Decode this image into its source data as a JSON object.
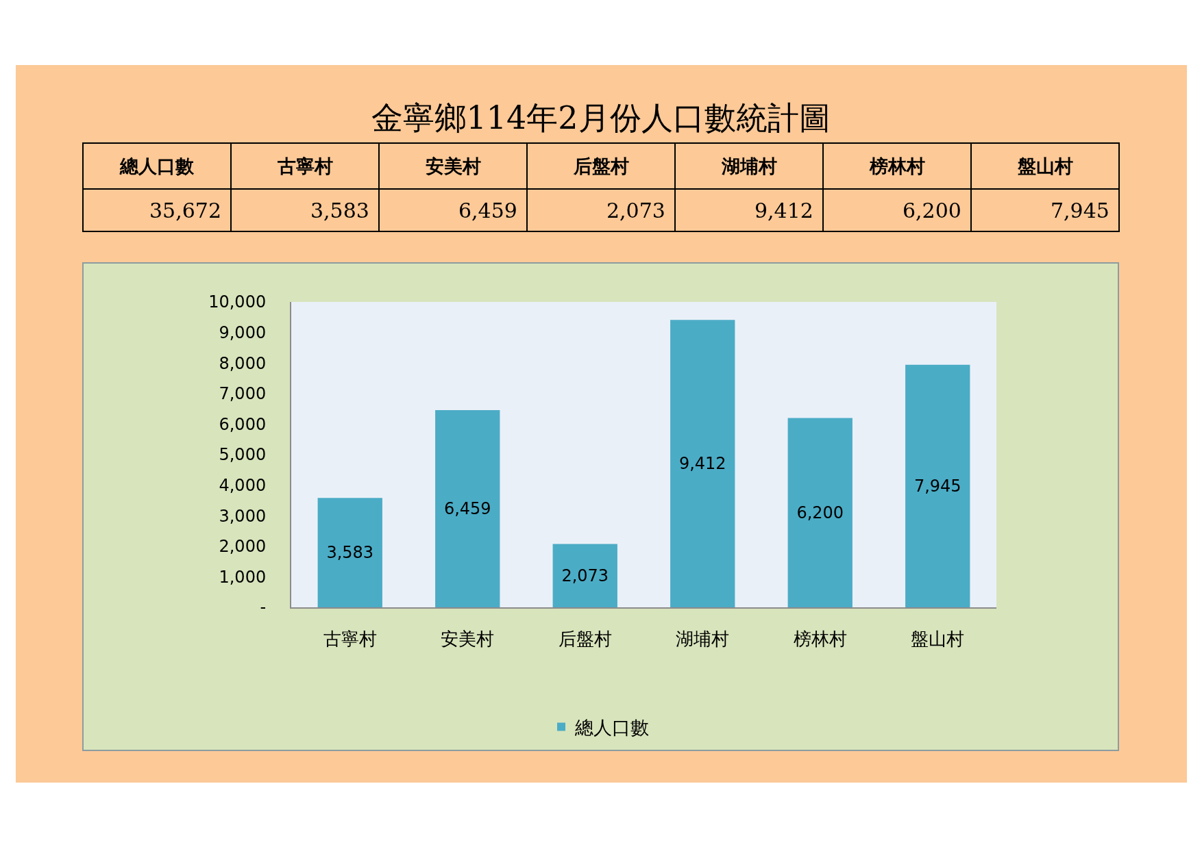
{
  "chart_data": {
    "type": "bar",
    "title": "金寧鄉114年2月份人口數統計圖",
    "categories": [
      "古寧村",
      "安美村",
      "后盤村",
      "湖埔村",
      "榜林村",
      "盤山村"
    ],
    "series": [
      {
        "name": "總人口數",
        "color": "#4bacc6",
        "values": [
          3583,
          6459,
          2073,
          9412,
          6200,
          7945
        ],
        "value_labels": [
          "3,583",
          "6,459",
          "2,073",
          "9,412",
          "6,200",
          "7,945"
        ]
      }
    ],
    "ylim": [
      0,
      10000
    ],
    "yticks": [
      {
        "value": 0,
        "label": "-"
      },
      {
        "value": 1000,
        "label": "1,000"
      },
      {
        "value": 2000,
        "label": "2,000"
      },
      {
        "value": 3000,
        "label": "3,000"
      },
      {
        "value": 4000,
        "label": "4,000"
      },
      {
        "value": 5000,
        "label": "5,000"
      },
      {
        "value": 6000,
        "label": "6,000"
      },
      {
        "value": 7000,
        "label": "7,000"
      },
      {
        "value": 8000,
        "label": "8,000"
      },
      {
        "value": 9000,
        "label": "9,000"
      },
      {
        "value": 10000,
        "label": "10,000"
      }
    ],
    "legend": "bottom",
    "annotations": [
      "35,672"
    ]
  }
}
